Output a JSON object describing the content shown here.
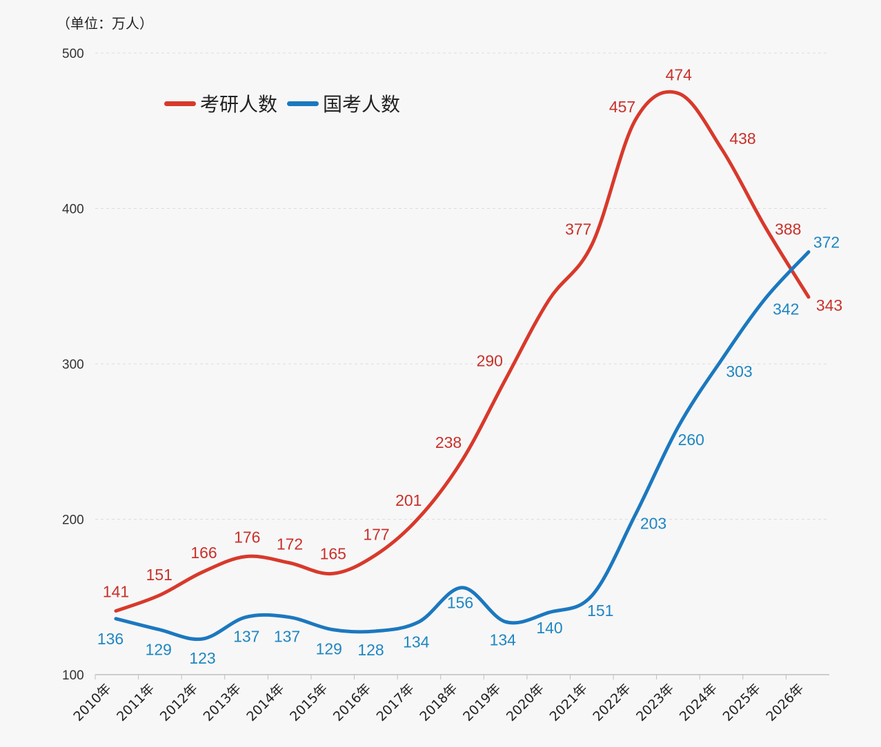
{
  "chart_data": {
    "type": "line",
    "title": "",
    "unit_label": "（单位：万人）",
    "xlabel": "",
    "ylabel": "",
    "ylim": [
      100,
      500
    ],
    "yticks": [
      100,
      200,
      300,
      400,
      500
    ],
    "grid": true,
    "legend_position": "top-left",
    "categories": [
      "2010年",
      "2011年",
      "2012年",
      "2013年",
      "2014年",
      "2015年",
      "2016年",
      "2017年",
      "2018年",
      "2019年",
      "2020年",
      "2021年",
      "2022年",
      "2023年",
      "2024年",
      "2025年",
      "2026年"
    ],
    "series": [
      {
        "name": "考研人数",
        "color": "#d8392b",
        "values": [
          141,
          151,
          166,
          176,
          172,
          165,
          177,
          201,
          238,
          290,
          341,
          377,
          457,
          474,
          438,
          388,
          343
        ],
        "labels": [
          "141",
          "151",
          "166",
          "176",
          "172",
          "165",
          "177",
          "201",
          "238",
          "290",
          "",
          "377",
          "457",
          "474",
          "438",
          "388",
          "343"
        ]
      },
      {
        "name": "国考人数",
        "color": "#1b78bf",
        "values": [
          136,
          129,
          123,
          137,
          137,
          129,
          128,
          134,
          156,
          134,
          140,
          151,
          203,
          260,
          303,
          342,
          372
        ],
        "labels": [
          "136",
          "129",
          "123",
          "137",
          "137",
          "129",
          "128",
          "134",
          "156",
          "134",
          "140",
          "151",
          "203",
          "260",
          "303",
          "342",
          "372"
        ]
      }
    ]
  }
}
